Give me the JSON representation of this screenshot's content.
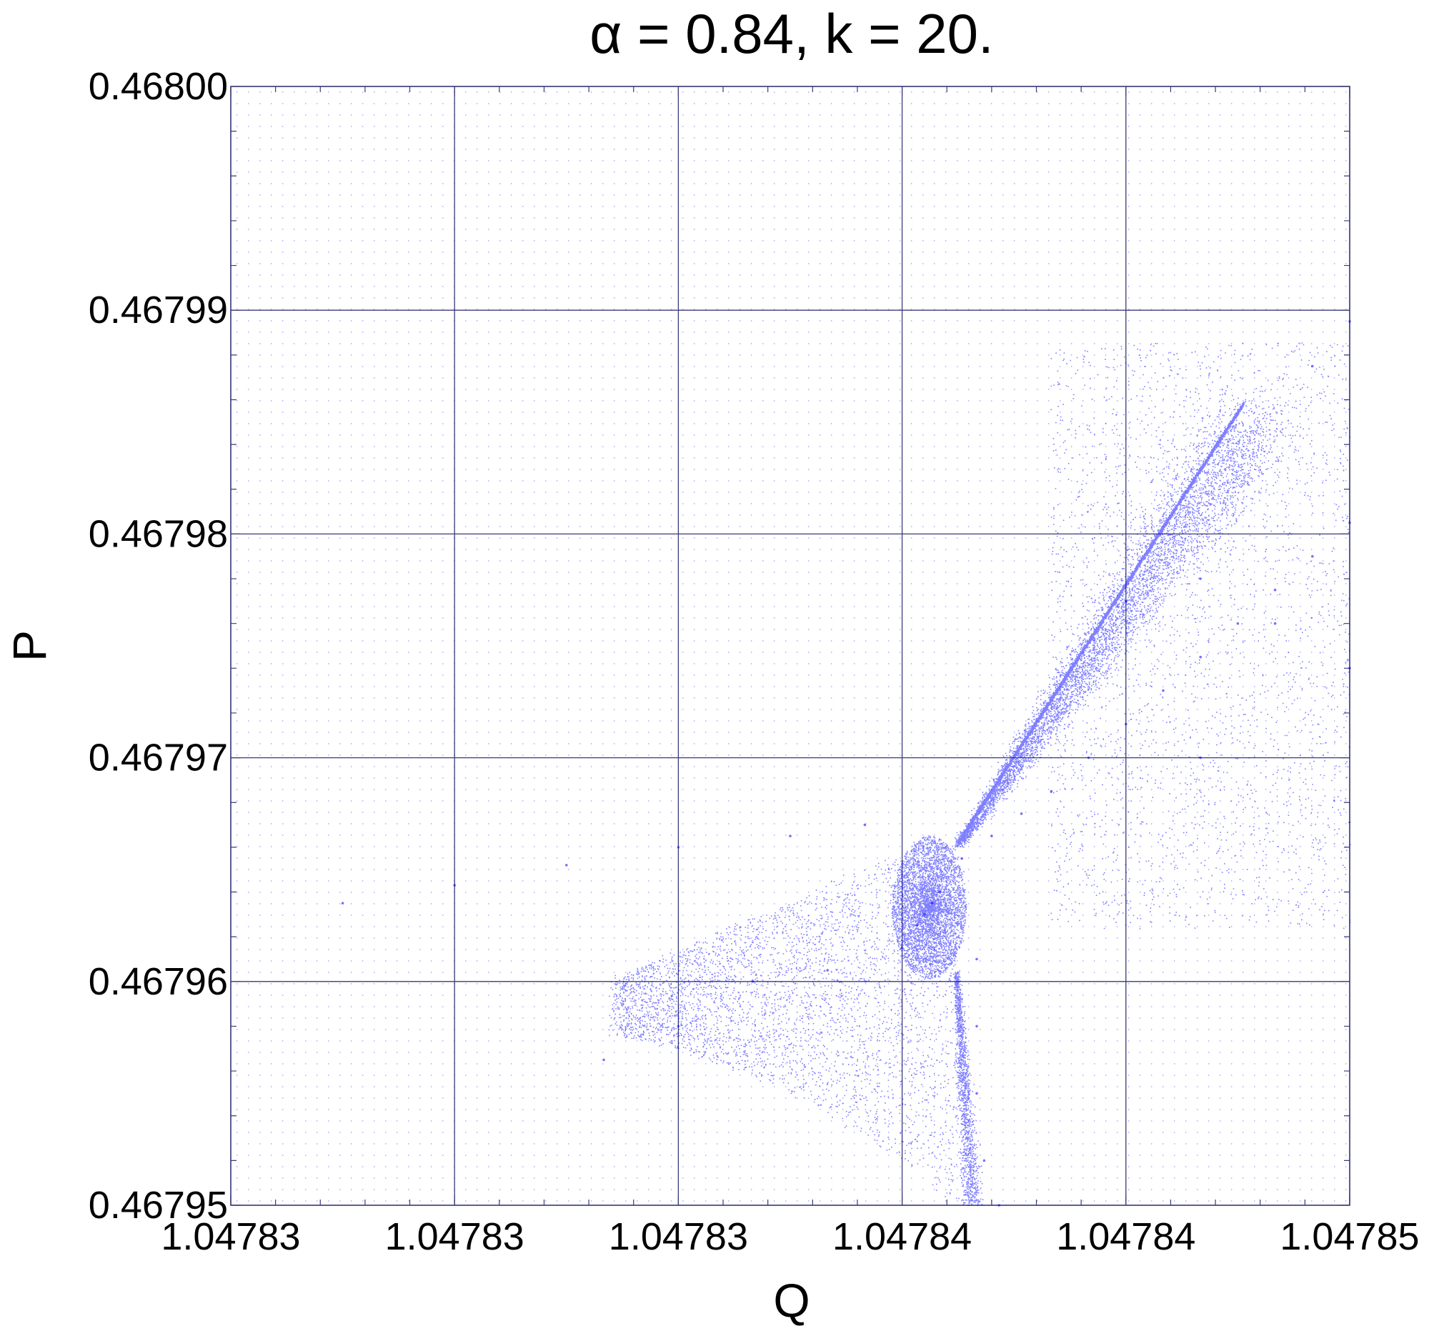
{
  "chart_data": {
    "type": "scatter",
    "title": "α = 0.84, k = 20.",
    "xlabel": "Q",
    "ylabel": "P",
    "x_tick_labels": [
      "1.04783",
      "1.04783",
      "1.04783",
      "1.04784",
      "1.04784",
      "1.04785"
    ],
    "y_tick_labels": [
      "0.46795",
      "0.46796",
      "0.46797",
      "0.46798",
      "0.46799",
      "0.46800"
    ],
    "xlim": [
      1.047832,
      1.047847
    ],
    "ylim": [
      0.46795,
      0.468
    ],
    "grid": true,
    "marker_color": "#0000ff",
    "grid_color": "#3a3a7a",
    "series": [
      {
        "values": [
          [
            1.0478413,
            0.467963
          ],
          [
            1.0478414,
            0.4679635
          ],
          [
            1.0478415,
            0.467964
          ],
          [
            1.0478412,
            0.4679625
          ],
          [
            1.0478418,
            0.4679655
          ],
          [
            1.0478422,
            0.4679665
          ],
          [
            1.047842,
            0.467961
          ],
          [
            1.047842,
            0.467958
          ],
          [
            1.047842,
            0.467955
          ],
          [
            1.0478421,
            0.467952
          ],
          [
            1.0478423,
            0.46795
          ],
          [
            1.0478426,
            0.4679675
          ],
          [
            1.047843,
            0.4679685
          ],
          [
            1.0478435,
            0.46797
          ],
          [
            1.047844,
            0.4679715
          ],
          [
            1.0478445,
            0.467973
          ],
          [
            1.047845,
            0.4679745
          ],
          [
            1.0478455,
            0.467976
          ],
          [
            1.047846,
            0.4679775
          ],
          [
            1.0478465,
            0.467979
          ],
          [
            1.047847,
            0.4679805
          ],
          [
            1.0478405,
            0.467967
          ],
          [
            1.0478395,
            0.4679665
          ],
          [
            1.047838,
            0.467966
          ],
          [
            1.0478365,
            0.4679652
          ],
          [
            1.047835,
            0.4679643
          ],
          [
            1.0478335,
            0.4679635
          ],
          [
            1.047841,
            0.4679615
          ],
          [
            1.04784,
            0.4679605
          ],
          [
            1.047839,
            0.46796
          ],
          [
            1.047838,
            0.467958
          ],
          [
            1.047837,
            0.4679565
          ],
          [
            1.047845,
            0.467978
          ],
          [
            1.047846,
            0.467976
          ],
          [
            1.047847,
            0.467974
          ],
          [
            1.047844,
            0.467977
          ],
          [
            1.047845,
            0.46797
          ],
          [
            1.0478465,
            0.4679875
          ],
          [
            1.047847,
            0.4679895
          ]
        ]
      }
    ]
  }
}
